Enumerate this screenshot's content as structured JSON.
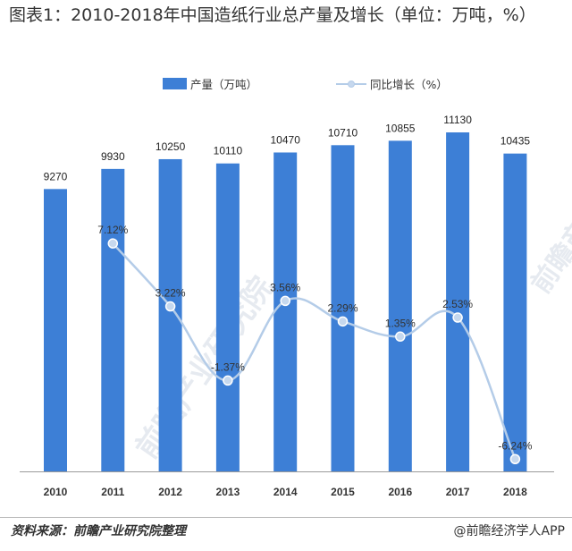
{
  "title": "图表1：2010-2018年中国造纸行业总产量及增长（单位：万吨，%）",
  "colors": {
    "bar": "#3d7fd6",
    "line": "#b4cce8",
    "marker_fill": "#c6d8ee",
    "marker_stroke": "#ffffff",
    "watermark": "#c8d2de"
  },
  "watermark": "前瞻产业研究院",
  "source": "资料来源：前瞻产业研究院整理",
  "credit": "@前瞻经济学人APP",
  "chart_data": {
    "type": "bar",
    "categories": [
      "2010",
      "2011",
      "2012",
      "2013",
      "2014",
      "2015",
      "2016",
      "2017",
      "2018"
    ],
    "series": [
      {
        "name": "产量（万吨）",
        "type": "bar",
        "axis": "left",
        "values": [
          9270,
          9930,
          10250,
          10110,
          10470,
          10710,
          10855,
          11130,
          10435
        ],
        "labels": [
          "9270",
          "9930",
          "10250",
          "10110",
          "10470",
          "10710",
          "10855",
          "11130",
          "10435"
        ]
      },
      {
        "name": "同比增长（%）",
        "type": "line",
        "axis": "right",
        "x": [
          "2011",
          "2012",
          "2013",
          "2014",
          "2015",
          "2016",
          "2017",
          "2018"
        ],
        "values": [
          7.12,
          3.22,
          -1.37,
          3.56,
          2.29,
          1.35,
          2.53,
          -6.24
        ],
        "labels": [
          "7.12%",
          "3.22%",
          "-1.37%",
          "3.56%",
          "2.29%",
          "1.35%",
          "2.53%",
          "-6.24%"
        ]
      }
    ],
    "legend_position": "top-center",
    "grid": false,
    "left_axis_range": [
      0,
      11500
    ],
    "right_axis_range": [
      -7,
      14
    ]
  }
}
